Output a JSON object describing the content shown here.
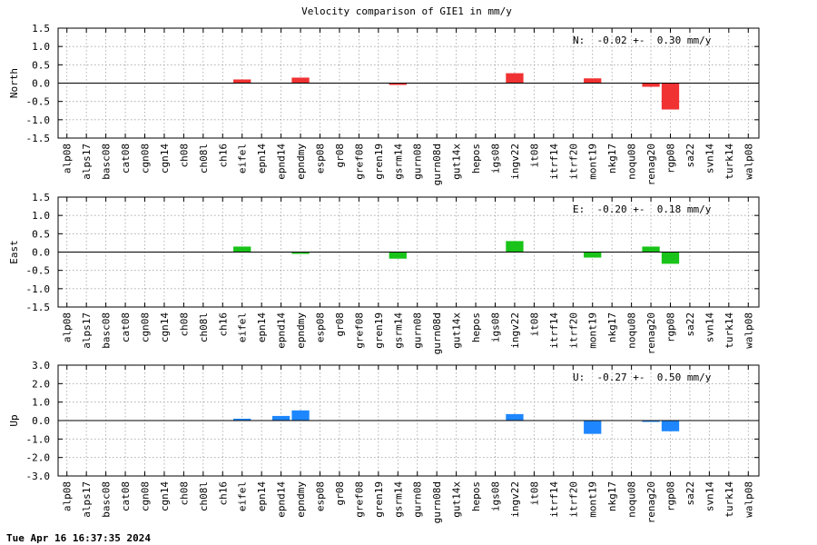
{
  "footer": {
    "timestamp": "Tue Apr 16 16:37:35 2024"
  },
  "chart_data": [
    {
      "type": "bar",
      "title": "Velocity comparison of GIE1 in mm/y",
      "ylabel": "North",
      "ylim": [
        -1.5,
        1.5
      ],
      "yticks": [
        -1.5,
        -1.0,
        -0.5,
        0.0,
        0.5,
        1.0,
        1.5
      ],
      "ytick_labels": [
        "-1.5",
        "-1.0",
        "-0.5",
        "0.0",
        "0.5",
        "1.0",
        "1.5"
      ],
      "color": "#f03232",
      "grid": true,
      "stat": "N:  -0.02 +-  0.30 mm/y",
      "categories": [
        "alp08",
        "alps17",
        "basc08",
        "cat08",
        "cgn08",
        "cgn14",
        "ch08",
        "ch08l",
        "ch16",
        "eifel",
        "epn14",
        "epnd14",
        "epndmy",
        "esp08",
        "gr08",
        "gref08",
        "gren19",
        "gsrm14",
        "gurn08",
        "gurn08d",
        "gut14x",
        "hepos",
        "igs08",
        "ingv22",
        "it08",
        "itrf14",
        "itrf20",
        "mont19",
        "nkg17",
        "noqu08",
        "renag20",
        "rgp08",
        "sa22",
        "svn14",
        "turk14",
        "walp08"
      ],
      "values": [
        null,
        null,
        null,
        null,
        null,
        null,
        null,
        null,
        null,
        0.1,
        null,
        null,
        0.15,
        null,
        null,
        null,
        null,
        -0.05,
        null,
        null,
        null,
        null,
        null,
        0.27,
        null,
        null,
        null,
        0.13,
        null,
        null,
        -0.1,
        -0.72,
        null,
        null,
        null,
        null
      ]
    },
    {
      "type": "bar",
      "title": "",
      "ylabel": "East",
      "ylim": [
        -1.5,
        1.5
      ],
      "yticks": [
        -1.5,
        -1.0,
        -0.5,
        0.0,
        0.5,
        1.0,
        1.5
      ],
      "ytick_labels": [
        "-1.5",
        "-1.0",
        "-0.5",
        "0.0",
        "0.5",
        "1.0",
        "1.5"
      ],
      "color": "#19c319",
      "grid": true,
      "stat": "E:  -0.20 +-  0.18 mm/y",
      "categories": [
        "alp08",
        "alps17",
        "basc08",
        "cat08",
        "cgn08",
        "cgn14",
        "ch08",
        "ch08l",
        "ch16",
        "eifel",
        "epn14",
        "epnd14",
        "epndmy",
        "esp08",
        "gr08",
        "gref08",
        "gren19",
        "gsrm14",
        "gurn08",
        "gurn08d",
        "gut14x",
        "hepos",
        "igs08",
        "ingv22",
        "it08",
        "itrf14",
        "itrf20",
        "mont19",
        "nkg17",
        "noqu08",
        "renag20",
        "rgp08",
        "sa22",
        "svn14",
        "turk14",
        "walp08"
      ],
      "values": [
        null,
        null,
        null,
        null,
        null,
        null,
        null,
        null,
        null,
        0.15,
        null,
        null,
        -0.05,
        null,
        null,
        null,
        null,
        -0.18,
        null,
        null,
        null,
        null,
        null,
        0.3,
        null,
        null,
        null,
        -0.15,
        null,
        null,
        0.15,
        -0.32,
        null,
        null,
        null,
        null
      ]
    },
    {
      "type": "bar",
      "title": "",
      "ylabel": "Up",
      "ylim": [
        -3.0,
        3.0
      ],
      "yticks": [
        -3.0,
        -2.0,
        -1.0,
        0.0,
        1.0,
        2.0,
        3.0
      ],
      "ytick_labels": [
        "-3.0",
        "-2.0",
        "-1.0",
        "0.0",
        "1.0",
        "2.0",
        "3.0"
      ],
      "color": "#1e87ff",
      "grid": true,
      "stat": "U:  -0.27 +-  0.50 mm/y",
      "categories": [
        "alp08",
        "alps17",
        "basc08",
        "cat08",
        "cgn08",
        "cgn14",
        "ch08",
        "ch08l",
        "ch16",
        "eifel",
        "epn14",
        "epnd14",
        "epndmy",
        "esp08",
        "gr08",
        "gref08",
        "gren19",
        "gsrm14",
        "gurn08",
        "gurn08d",
        "gut14x",
        "hepos",
        "igs08",
        "ingv22",
        "it08",
        "itrf14",
        "itrf20",
        "mont19",
        "nkg17",
        "noqu08",
        "renag20",
        "rgp08",
        "sa22",
        "svn14",
        "turk14",
        "walp08"
      ],
      "values": [
        null,
        null,
        null,
        null,
        null,
        null,
        null,
        null,
        null,
        0.1,
        null,
        0.25,
        0.55,
        null,
        null,
        null,
        null,
        null,
        null,
        null,
        null,
        null,
        null,
        0.35,
        null,
        null,
        null,
        -0.72,
        null,
        null,
        -0.05,
        -0.58,
        null,
        null,
        null,
        null
      ]
    }
  ]
}
